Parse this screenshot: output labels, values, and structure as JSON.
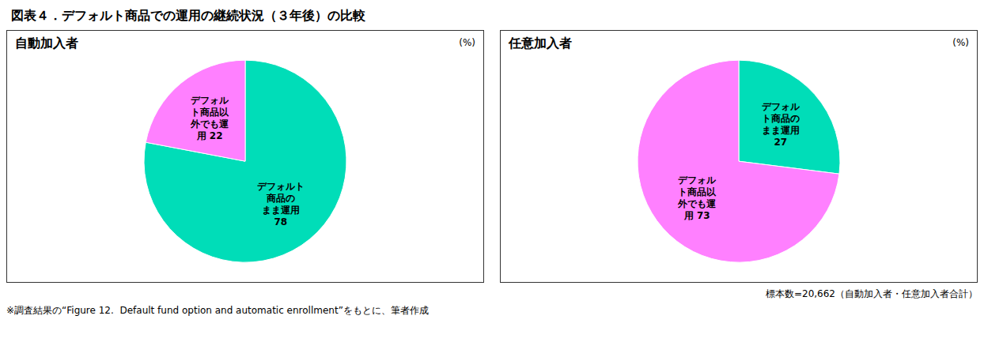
{
  "title": "図表４．デフォルト商品での運用の継続状況（３年後）の比較",
  "chart_data": [
    {
      "type": "pie",
      "title": "自動加入者",
      "subtitle": "(%)",
      "values": [
        78,
        22
      ],
      "value_labels": [
        "デフォルト\n商品の\nまま運用\n78",
        "デフォル\nト商品以\n外でも運\n用 22"
      ],
      "colors": [
        "#00DDB8",
        "#FF80FF"
      ],
      "data_labels": true
    },
    {
      "type": "pie",
      "title": "任意加入者",
      "subtitle": "(%)",
      "values": [
        27,
        73
      ],
      "value_labels": [
        "デフォル\nト商品の\nまま運用\n27",
        "デフォル\nト商品以\n外でも運\n用 73"
      ],
      "colors": [
        "#00DDB8",
        "#FF80FF"
      ],
      "data_labels": true
    }
  ],
  "annotations": [
    "標本数=20,662（自動加入者・任意加入者合計）",
    "※調査結果の“Figure 12.  Default fund option and automatic enrollment”をもとに、筆者作成"
  ]
}
